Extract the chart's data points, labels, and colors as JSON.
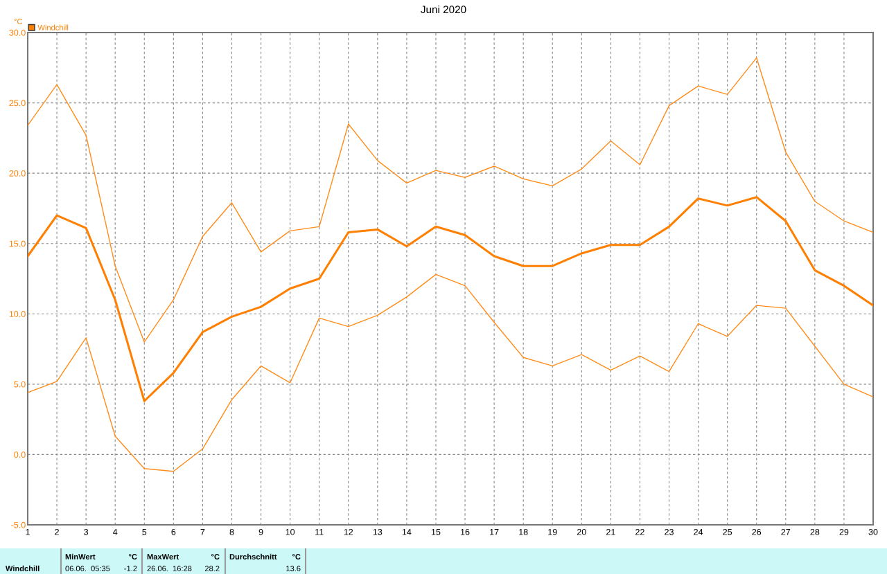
{
  "chart_data": {
    "type": "line",
    "title": "Juni 2020",
    "ylabel": "°C",
    "x": [
      1,
      2,
      3,
      4,
      5,
      6,
      7,
      8,
      9,
      10,
      11,
      12,
      13,
      14,
      15,
      16,
      17,
      18,
      19,
      20,
      21,
      22,
      23,
      24,
      25,
      26,
      27,
      28,
      29,
      30
    ],
    "series": [
      {
        "name": "Windchill",
        "color": "#ff7f00",
        "values": [
          14.1,
          17.0,
          16.1,
          11.0,
          3.8,
          5.8,
          8.7,
          9.8,
          10.5,
          11.8,
          12.5,
          15.8,
          16.0,
          14.8,
          16.2,
          15.6,
          14.1,
          13.4,
          13.4,
          14.3,
          14.9,
          14.9,
          16.2,
          18.2,
          17.7,
          18.3,
          16.6,
          13.1,
          12.0,
          10.6
        ]
      },
      {
        "color": "#ff8c1a",
        "values": [
          23.4,
          26.3,
          22.7,
          13.4,
          8.0,
          11.0,
          15.5,
          17.9,
          14.4,
          15.9,
          16.2,
          23.5,
          20.9,
          19.3,
          20.2,
          19.7,
          20.5,
          19.6,
          19.1,
          20.3,
          22.3,
          20.6,
          24.8,
          26.2,
          25.6,
          28.2,
          21.5,
          18.0,
          16.6,
          15.8
        ]
      },
      {
        "color": "#ff8c1a",
        "values": [
          4.4,
          5.2,
          8.3,
          1.3,
          -1.0,
          -1.2,
          0.4,
          3.9,
          6.3,
          5.1,
          9.7,
          9.1,
          9.9,
          11.2,
          12.8,
          12.0,
          9.4,
          6.9,
          6.3,
          7.1,
          6.0,
          7.0,
          5.9,
          9.3,
          8.4,
          10.6,
          10.4,
          7.7,
          5.0,
          4.1
        ]
      }
    ],
    "xlim": [
      1,
      30
    ],
    "xticks": [
      1,
      2,
      3,
      4,
      5,
      6,
      7,
      8,
      9,
      10,
      11,
      12,
      13,
      14,
      15,
      16,
      17,
      18,
      19,
      20,
      21,
      22,
      23,
      24,
      25,
      26,
      27,
      28,
      29,
      30
    ],
    "ylim": [
      -5,
      30
    ],
    "yticks": [
      {
        "value": -5,
        "label": "-5.0"
      },
      {
        "value": 0,
        "label": "0.0"
      },
      {
        "value": 5,
        "label": "5.0"
      },
      {
        "value": 10,
        "label": "10.0"
      },
      {
        "value": 15,
        "label": "15.0"
      },
      {
        "value": 20,
        "label": "20.0"
      },
      {
        "value": 25,
        "label": "25.0"
      },
      {
        "value": 30,
        "label": "30.0"
      }
    ],
    "grid": true,
    "legend": "top left",
    "marker": "none",
    "line_style": "solid",
    "annotations": [
      "Windchill",
      "MinWert",
      "°C",
      "06.06.  05:35",
      "-1.2",
      "MaxWert",
      "°C",
      "26.06.  16:28",
      "28.2",
      "Durchschnitt",
      "°C",
      "13.6"
    ]
  }
}
